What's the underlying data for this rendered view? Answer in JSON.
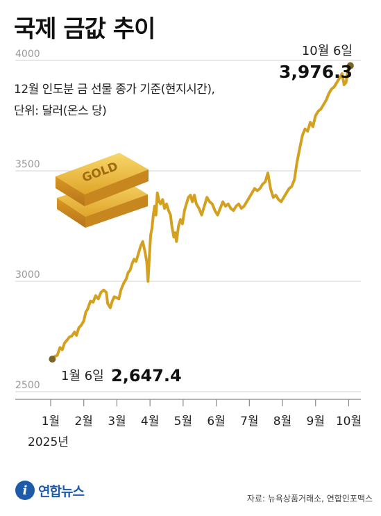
{
  "title": "국제 금값 추이",
  "subtitle_line1": "12월 인도분 금 선물 종가 기준(현지시간),",
  "subtitle_line2": "단위: 달러(온스 당)",
  "year_label": "2025년",
  "source": "자료: 뉴욕상품거래소, 연합인포맥스",
  "logo_text": "연합뉴스",
  "logo_mark": "i",
  "gold_bar_text": "GOLD",
  "colors": {
    "line": "#d4a020",
    "marker": "#7a6428",
    "grid": "#d0d0d0",
    "axis": "#888888",
    "logo": "#1e5aa8"
  },
  "chart_data": {
    "type": "line",
    "ylim": [
      2500,
      4000
    ],
    "y_ticks": [
      2500,
      3000,
      3500,
      4000
    ],
    "x_tick_labels": [
      "1월",
      "2월",
      "3월",
      "4월",
      "5월",
      "6월",
      "7월",
      "8월",
      "9월",
      "10월"
    ],
    "x_domain": [
      1,
      10.2
    ],
    "grid": true,
    "series": [
      {
        "values": [
          [
            1.05,
            2647.4
          ],
          [
            1.12,
            2660
          ],
          [
            1.2,
            2664
          ],
          [
            1.28,
            2700
          ],
          [
            1.35,
            2690
          ],
          [
            1.42,
            2720
          ],
          [
            1.5,
            2735
          ],
          [
            1.57,
            2748
          ],
          [
            1.64,
            2752
          ],
          [
            1.72,
            2770
          ],
          [
            1.78,
            2755
          ],
          [
            1.85,
            2790
          ],
          [
            1.92,
            2800
          ],
          [
            2.0,
            2820
          ],
          [
            2.06,
            2860
          ],
          [
            2.12,
            2875
          ],
          [
            2.2,
            2910
          ],
          [
            2.28,
            2905
          ],
          [
            2.36,
            2935
          ],
          [
            2.44,
            2920
          ],
          [
            2.52,
            2950
          ],
          [
            2.6,
            2960
          ],
          [
            2.68,
            2950
          ],
          [
            2.72,
            2900
          ],
          [
            2.8,
            2880
          ],
          [
            2.86,
            2910
          ],
          [
            2.92,
            2930
          ],
          [
            3.0,
            2925
          ],
          [
            3.06,
            2920
          ],
          [
            3.12,
            2960
          ],
          [
            3.2,
            2990
          ],
          [
            3.28,
            3010
          ],
          [
            3.34,
            3040
          ],
          [
            3.4,
            3050
          ],
          [
            3.46,
            3080
          ],
          [
            3.52,
            3100
          ],
          [
            3.58,
            3090
          ],
          [
            3.66,
            3130
          ],
          [
            3.72,
            3160
          ],
          [
            3.78,
            3180
          ],
          [
            3.84,
            3140
          ],
          [
            3.9,
            3090
          ],
          [
            3.94,
            3000
          ],
          [
            3.98,
            3110
          ],
          [
            4.02,
            3210
          ],
          [
            4.06,
            3240
          ],
          [
            4.1,
            3300
          ],
          [
            4.14,
            3340
          ],
          [
            4.18,
            3300
          ],
          [
            4.22,
            3400
          ],
          [
            4.28,
            3360
          ],
          [
            4.32,
            3350
          ],
          [
            4.38,
            3370
          ],
          [
            4.44,
            3330
          ],
          [
            4.5,
            3350
          ],
          [
            4.56,
            3320
          ],
          [
            4.62,
            3300
          ],
          [
            4.66,
            3250
          ],
          [
            4.72,
            3200
          ],
          [
            4.76,
            3220
          ],
          [
            4.8,
            3180
          ],
          [
            4.86,
            3250
          ],
          [
            4.92,
            3280
          ],
          [
            4.98,
            3260
          ],
          [
            5.04,
            3320
          ],
          [
            5.1,
            3350
          ],
          [
            5.16,
            3380
          ],
          [
            5.22,
            3390
          ],
          [
            5.28,
            3360
          ],
          [
            5.34,
            3390
          ],
          [
            5.4,
            3350
          ],
          [
            5.48,
            3330
          ],
          [
            5.56,
            3300
          ],
          [
            5.64,
            3340
          ],
          [
            5.72,
            3380
          ],
          [
            5.8,
            3360
          ],
          [
            5.88,
            3350
          ],
          [
            5.96,
            3320
          ],
          [
            6.04,
            3300
          ],
          [
            6.12,
            3330
          ],
          [
            6.2,
            3360
          ],
          [
            6.28,
            3340
          ],
          [
            6.36,
            3350
          ],
          [
            6.44,
            3330
          ],
          [
            6.52,
            3320
          ],
          [
            6.6,
            3340
          ],
          [
            6.68,
            3350
          ],
          [
            6.76,
            3330
          ],
          [
            6.84,
            3340
          ],
          [
            6.92,
            3360
          ],
          [
            7.0,
            3380
          ],
          [
            7.08,
            3400
          ],
          [
            7.16,
            3420
          ],
          [
            7.24,
            3410
          ],
          [
            7.32,
            3420
          ],
          [
            7.4,
            3440
          ],
          [
            7.48,
            3450
          ],
          [
            7.56,
            3490
          ],
          [
            7.64,
            3420
          ],
          [
            7.72,
            3380
          ],
          [
            7.8,
            3390
          ],
          [
            7.88,
            3370
          ],
          [
            7.96,
            3360
          ],
          [
            8.04,
            3380
          ],
          [
            8.12,
            3400
          ],
          [
            8.2,
            3420
          ],
          [
            8.28,
            3430
          ],
          [
            8.36,
            3460
          ],
          [
            8.44,
            3540
          ],
          [
            8.52,
            3600
          ],
          [
            8.6,
            3660
          ],
          [
            8.68,
            3690
          ],
          [
            8.76,
            3680
          ],
          [
            8.84,
            3720
          ],
          [
            8.92,
            3700
          ],
          [
            9.0,
            3750
          ],
          [
            9.08,
            3770
          ],
          [
            9.16,
            3780
          ],
          [
            9.24,
            3800
          ],
          [
            9.32,
            3820
          ],
          [
            9.4,
            3850
          ],
          [
            9.48,
            3870
          ],
          [
            9.56,
            3880
          ],
          [
            9.64,
            3900
          ],
          [
            9.72,
            3920
          ],
          [
            9.8,
            3940
          ],
          [
            9.86,
            3890
          ],
          [
            9.92,
            3900
          ],
          [
            9.98,
            3960
          ],
          [
            10.05,
            3976.3
          ]
        ]
      }
    ],
    "annotations": [
      {
        "date": "1월 6일",
        "value": "2,647.4"
      },
      {
        "date": "10월 6일",
        "value": "3,976.3"
      }
    ]
  }
}
